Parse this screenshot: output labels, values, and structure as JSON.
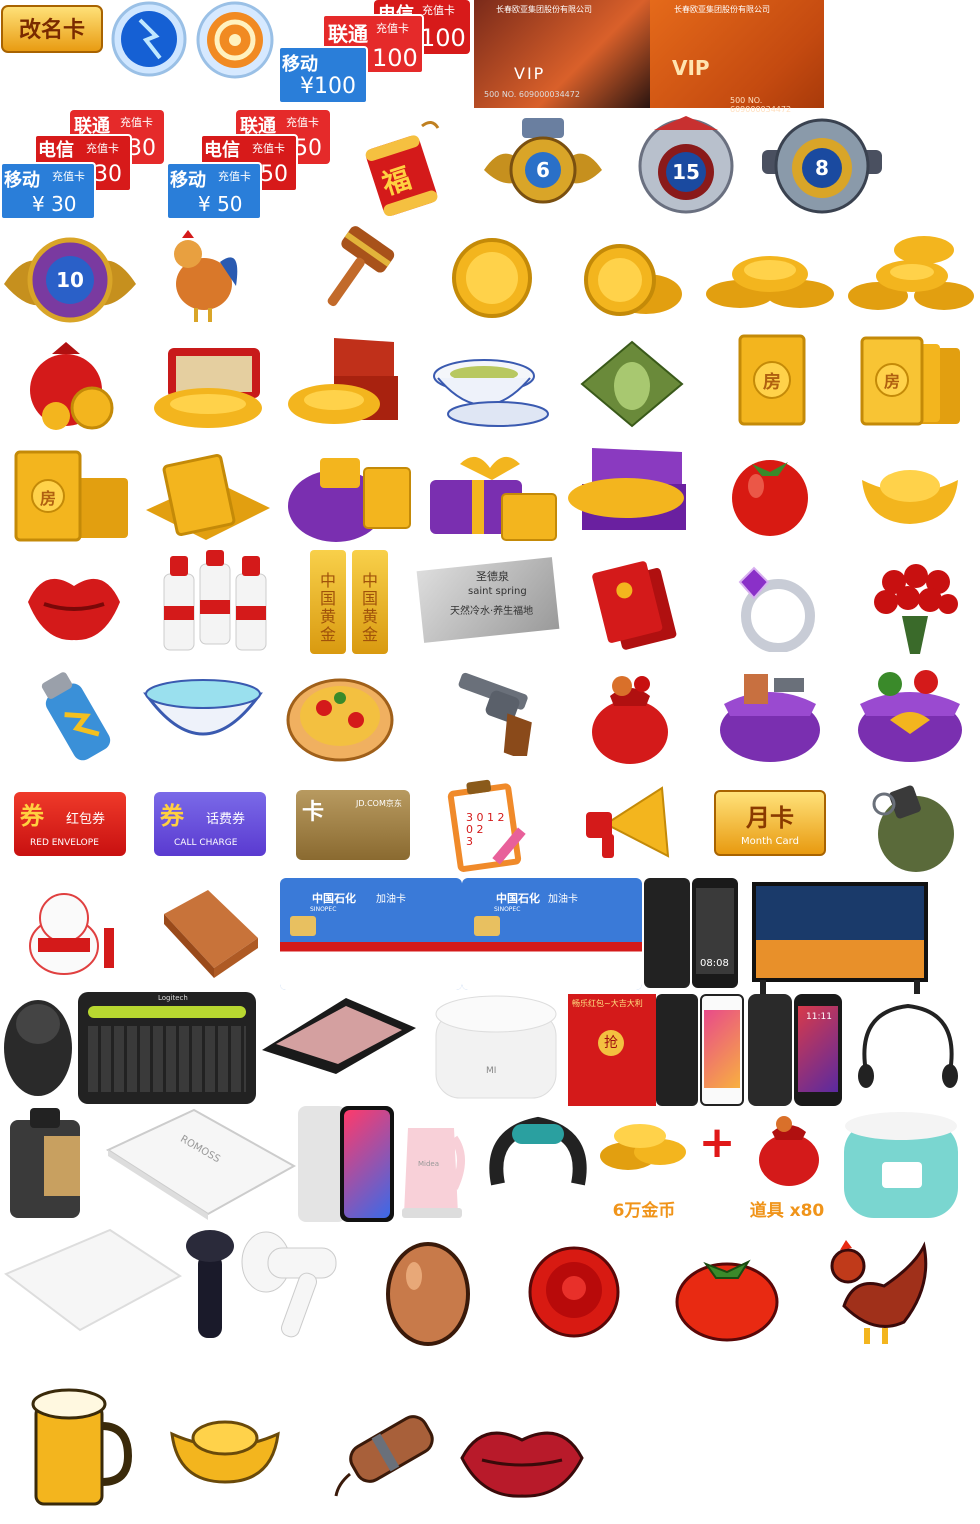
{
  "rename_card": {
    "label": "改名卡"
  },
  "phone_cards_100": {
    "telecom": "电信",
    "unicom": "联通",
    "mobile": "移动",
    "card": "充值卡",
    "value": "100",
    "yen_value": "¥100"
  },
  "phone_cards_30": {
    "telecom": "电信",
    "unicom": "联通",
    "mobile": "移动",
    "card": "充值卡",
    "value": "30",
    "yen_value": "¥ 30"
  },
  "phone_cards_50": {
    "telecom": "电信",
    "unicom": "联通",
    "mobile": "移动",
    "card": "充值卡",
    "value": "50",
    "yen_value": "¥ 50"
  },
  "vip_card_1": {
    "label": "VIP",
    "number": "500 NO. 609000034472",
    "company": "长春欧亚集团股份有限公司"
  },
  "vip_card_2": {
    "label": "VIP",
    "number": "500 NO. 609000034472",
    "company": "长春欧亚集团股份有限公司"
  },
  "badges": {
    "b6": "6",
    "b15": "15",
    "b8": "8",
    "b10": "10"
  },
  "fu_char": "福",
  "house_char": "房",
  "gold_bars": {
    "left": "中国黄金",
    "right": "中国黄金"
  },
  "spring_ticket": {
    "title": "圣德泉",
    "subtitle": "saint spring",
    "line": "天然冷水·养生福地"
  },
  "coupons": {
    "red_envelope": {
      "icon": "券",
      "label": "红包券",
      "en": "RED ENVELOPE"
    },
    "call_charge": {
      "icon": "券",
      "label": "话费券",
      "en": "CALL CHARGE"
    },
    "jd_card": {
      "icon": "卡",
      "brand": "JD.COM京东"
    },
    "month_card": {
      "label": "月卡",
      "en": "Month Card"
    }
  },
  "lottery_numbers": [
    "3",
    "0",
    "1",
    "2",
    "0",
    "2",
    "3"
  ],
  "fuel_cards": [
    {
      "brand": "中国石化",
      "en": "SINOPEC",
      "label": "加油卡"
    },
    {
      "brand": "中国石化",
      "en": "SINOPEC",
      "label": "加油卡"
    }
  ],
  "phone_time": "08:08",
  "logitech": "Logitech",
  "mi_logo": "MI",
  "hongbao_banner": {
    "title": "畅乐红包~大吉大利",
    "button": "抢"
  },
  "iphone_time": "11:11",
  "powerbank_brand": "ROMOSS",
  "kettle_brand": "Midea",
  "prize_bundle": {
    "coins": "6万金币",
    "plus": "+",
    "items": "道具 x80"
  },
  "colors": {
    "gold": "#f3b51e",
    "red": "#d91f1f",
    "blue": "#2f6fd8",
    "purple": "#7a2fb0"
  }
}
